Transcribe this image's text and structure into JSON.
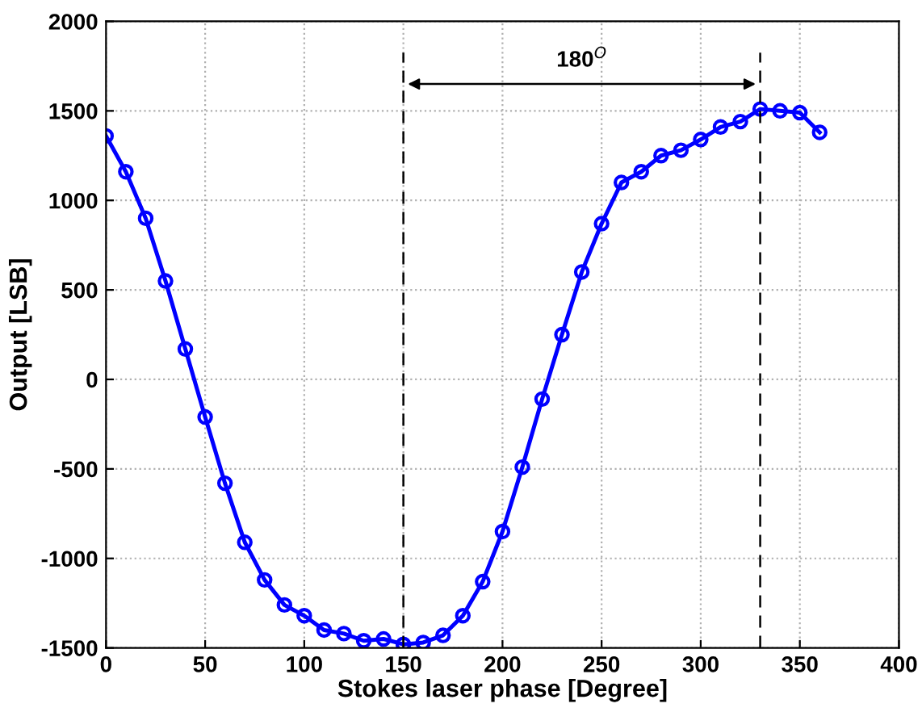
{
  "chart_data": {
    "type": "line",
    "xlabel": "Stokes laser phase [Degree]",
    "ylabel": "Output [LSB]",
    "x": [
      0,
      10,
      20,
      30,
      40,
      50,
      60,
      70,
      80,
      90,
      100,
      110,
      120,
      130,
      140,
      150,
      160,
      170,
      180,
      190,
      200,
      210,
      220,
      230,
      240,
      250,
      260,
      270,
      280,
      290,
      300,
      310,
      320,
      330,
      340,
      350,
      360
    ],
    "series": [
      {
        "color": "#0000ff",
        "values": [
          1360,
          1160,
          900,
          550,
          170,
          -210,
          -580,
          -910,
          -1120,
          -1260,
          -1320,
          -1400,
          -1420,
          -1460,
          -1450,
          -1480,
          -1470,
          -1430,
          -1320,
          -1130,
          -850,
          -490,
          -110,
          250,
          600,
          870,
          1100,
          1160,
          1250,
          1280,
          1340,
          1410,
          1440,
          1510,
          1500,
          1490,
          1380
        ]
      }
    ],
    "xlim": [
      0,
      400
    ],
    "xticks": [
      0,
      50,
      100,
      150,
      200,
      250,
      300,
      350,
      400
    ],
    "ylim": [
      -1500,
      2000
    ],
    "yticks": [
      -1500,
      -1000,
      -500,
      0,
      500,
      1000,
      1500,
      2000
    ],
    "grid": true,
    "marker": "circle",
    "line_style": "solid",
    "ref_lines": [
      {
        "axis": "x",
        "value": 150,
        "color": "#000000",
        "line_style": "dashed"
      },
      {
        "axis": "x",
        "value": 330,
        "color": "#000000",
        "line_style": "dashed"
      }
    ],
    "annotations": [
      "180$^{O}$"
    ]
  }
}
